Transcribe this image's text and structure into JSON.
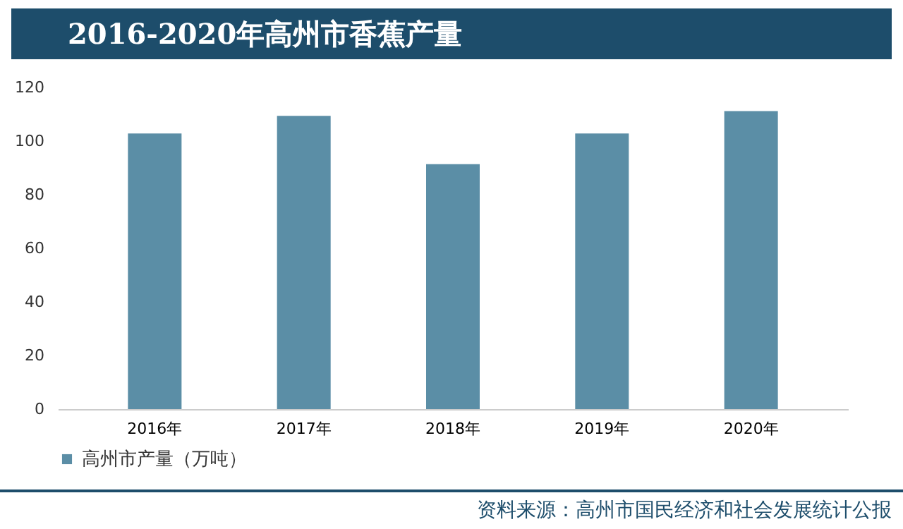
{
  "chart_data": {
    "type": "bar",
    "title": "2016-2020年高州市香蕉产量",
    "categories": [
      "2016年",
      "2017年",
      "2018年",
      "2019年",
      "2020年"
    ],
    "series": [
      {
        "name": "高州市产量（万吨）",
        "color": "#5b8ea6",
        "values": [
          102.8,
          109.4,
          91.4,
          102.8,
          111.2
        ]
      }
    ],
    "ylim": [
      0,
      120
    ],
    "yticks": [
      0,
      20,
      40,
      60,
      80,
      100,
      120
    ],
    "grid": false,
    "legend": "bottom",
    "annotations": [
      "资料来源：高州市国民经济和社会发展统计公报"
    ]
  }
}
